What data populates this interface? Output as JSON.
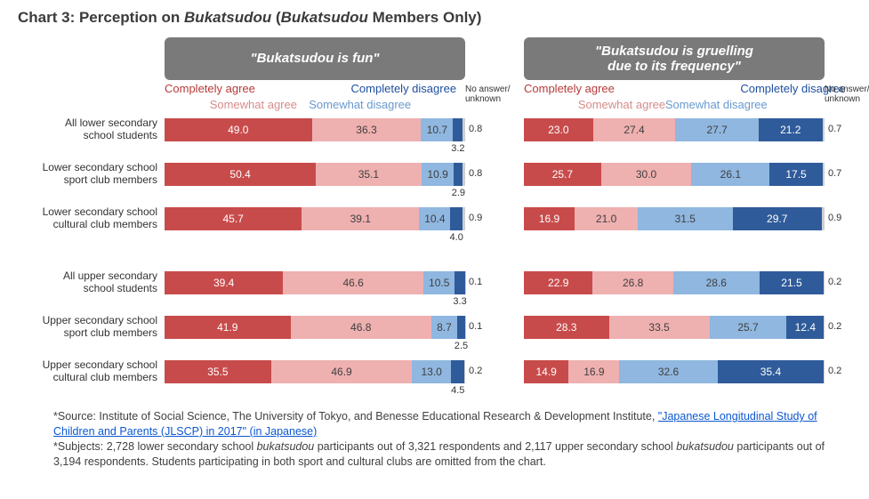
{
  "title_prefix": "Chart 3: Perception on ",
  "title_term": "Bukatsudou",
  "title_suffix_open": " (",
  "title_suffix_members": " Members Only)",
  "colors": {
    "comp_agree": "#c84b4b",
    "some_agree": "#efb0b0",
    "some_disagree": "#8fb7e0",
    "comp_disagree": "#2f5b9a",
    "no_answer": "#cfcfcf",
    "legend_red": "#b63a3a",
    "legend_pink": "#d88b8b",
    "legend_lblue": "#6a99cf",
    "legend_blue": "#1f4fa0",
    "header_bg": "#7a7a7a"
  },
  "panels": [
    {
      "header_html": "\"<em>Bukatsudou</em> is fun\"",
      "legend": {
        "comp_agree": "Completely agree",
        "some_agree": "Somewhat agree",
        "some_disagree": "Somewhat disagree",
        "comp_disagree": "Completely disagree",
        "no_answer": "No answer/\nunknown"
      }
    },
    {
      "header_html": "\"<em>Bukatsudou</em> is gruelling<br>due to its frequency\"",
      "legend": {
        "comp_agree": "Completely agree",
        "some_agree": "Somewhat agree",
        "some_disagree": "Somewhat disagree",
        "comp_disagree": "Completely disagree",
        "no_answer": "No answer/\nunknown"
      }
    }
  ],
  "row_labels": [
    "All lower secondary\nschool students",
    "Lower secondary school\nsport club members",
    "Lower secondary school\ncultural club members",
    "All upper secondary\nschool students",
    "Upper secondary school\nsport club members",
    "Upper secondary school\ncultural club members"
  ],
  "data": {
    "left": [
      {
        "ca": 49.0,
        "sa": 36.3,
        "sd": 10.7,
        "cd": 3.2,
        "na": 0.8
      },
      {
        "ca": 50.4,
        "sa": 35.1,
        "sd": 10.9,
        "cd": 2.9,
        "na": 0.8
      },
      {
        "ca": 45.7,
        "sa": 39.1,
        "sd": 10.4,
        "cd": 4.0,
        "na": 0.9
      },
      {
        "ca": 39.4,
        "sa": 46.6,
        "sd": 10.5,
        "cd": 3.3,
        "na": 0.1
      },
      {
        "ca": 41.9,
        "sa": 46.8,
        "sd": 8.7,
        "cd": 2.5,
        "na": 0.1
      },
      {
        "ca": 35.5,
        "sa": 46.9,
        "sd": 13.0,
        "cd": 4.5,
        "na": 0.2
      }
    ],
    "right": [
      {
        "ca": 23.0,
        "sa": 27.4,
        "sd": 27.7,
        "cd": 21.2,
        "na": 0.7
      },
      {
        "ca": 25.7,
        "sa": 30.0,
        "sd": 26.1,
        "cd": 17.5,
        "na": 0.7
      },
      {
        "ca": 16.9,
        "sa": 21.0,
        "sd": 31.5,
        "cd": 29.7,
        "na": 0.9
      },
      {
        "ca": 22.9,
        "sa": 26.8,
        "sd": 28.6,
        "cd": 21.5,
        "na": 0.2
      },
      {
        "ca": 28.3,
        "sa": 33.5,
        "sd": 25.7,
        "cd": 12.4,
        "na": 0.2
      },
      {
        "ca": 14.9,
        "sa": 16.9,
        "sd": 32.6,
        "cd": 35.4,
        "na": 0.2
      }
    ]
  },
  "footnotes": {
    "src_prefix": "*Source: Institute of Social Science, The University of Tokyo, and Benesse Educational Research & Development Institute, ",
    "link_text": "\"Japanese Longitudinal Study of Children and Parents (JLSCP) in 2017\" (in Japanese)",
    "subjects": "*Subjects: 2,728 lower secondary school ",
    "subjects_mid": " participants out of 3,321 respondents and 2,117 upper secondary school ",
    "subjects_end": " participants out of 3,194 respondents. Students participating in both sport and cultural clubs are omitted from the chart.",
    "term": "bukatsudou"
  }
}
